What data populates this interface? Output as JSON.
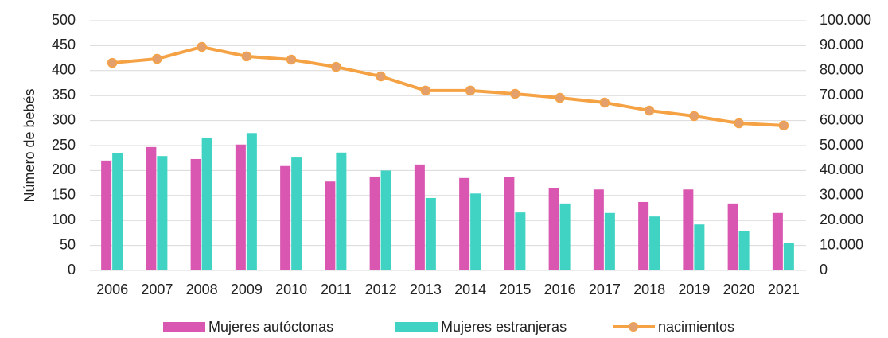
{
  "chart_data": {
    "type": "bar",
    "ylabel": "Número de bebés",
    "categories": [
      "2006",
      "2007",
      "2008",
      "2009",
      "2010",
      "2011",
      "2012",
      "2013",
      "2014",
      "2015",
      "2016",
      "2017",
      "2018",
      "2019",
      "2020",
      "2021"
    ],
    "series": [
      {
        "name": "Mujeres autóctonas",
        "color": "#d957b0",
        "type": "bar",
        "values": [
          220,
          247,
          223,
          252,
          209,
          178,
          188,
          212,
          185,
          187,
          165,
          162,
          137,
          162,
          134,
          115
        ]
      },
      {
        "name": "Mujeres estranjeras",
        "color": "#40d3c3",
        "type": "bar",
        "values": [
          235,
          229,
          266,
          275,
          226,
          236,
          200,
          145,
          154,
          116,
          134,
          115,
          108,
          92,
          79,
          55
        ]
      },
      {
        "name": "nacimientos",
        "color": "#f5a245",
        "marker_color": "#e3a06c",
        "type": "line",
        "axis": "y2",
        "values": [
          83100,
          84700,
          89500,
          85700,
          84400,
          81500,
          77700,
          72000,
          72000,
          70700,
          69100,
          67200,
          64000,
          61800,
          58900,
          58000
        ]
      }
    ],
    "ylim": [
      0,
      500
    ],
    "yticks": [
      0,
      50,
      100,
      150,
      200,
      250,
      300,
      350,
      400,
      450,
      500
    ],
    "y2lim": [
      0,
      100000
    ],
    "y2ticks": [
      0,
      {
        "value": 10000,
        "label": "10.000"
      },
      {
        "value": 20000,
        "label": "20.000"
      },
      {
        "value": 30000,
        "label": "30.000"
      },
      {
        "value": 40000,
        "label": "40.000"
      },
      {
        "value": 50000,
        "label": "50.000"
      },
      {
        "value": 60000,
        "label": "60.000"
      },
      {
        "value": 70000,
        "label": "70.000"
      },
      {
        "value": 80000,
        "label": "80.000"
      },
      {
        "value": 90000,
        "label": "90.000"
      },
      {
        "value": 100000,
        "label": "100.000"
      }
    ],
    "grid": true,
    "legend": "bottom"
  }
}
